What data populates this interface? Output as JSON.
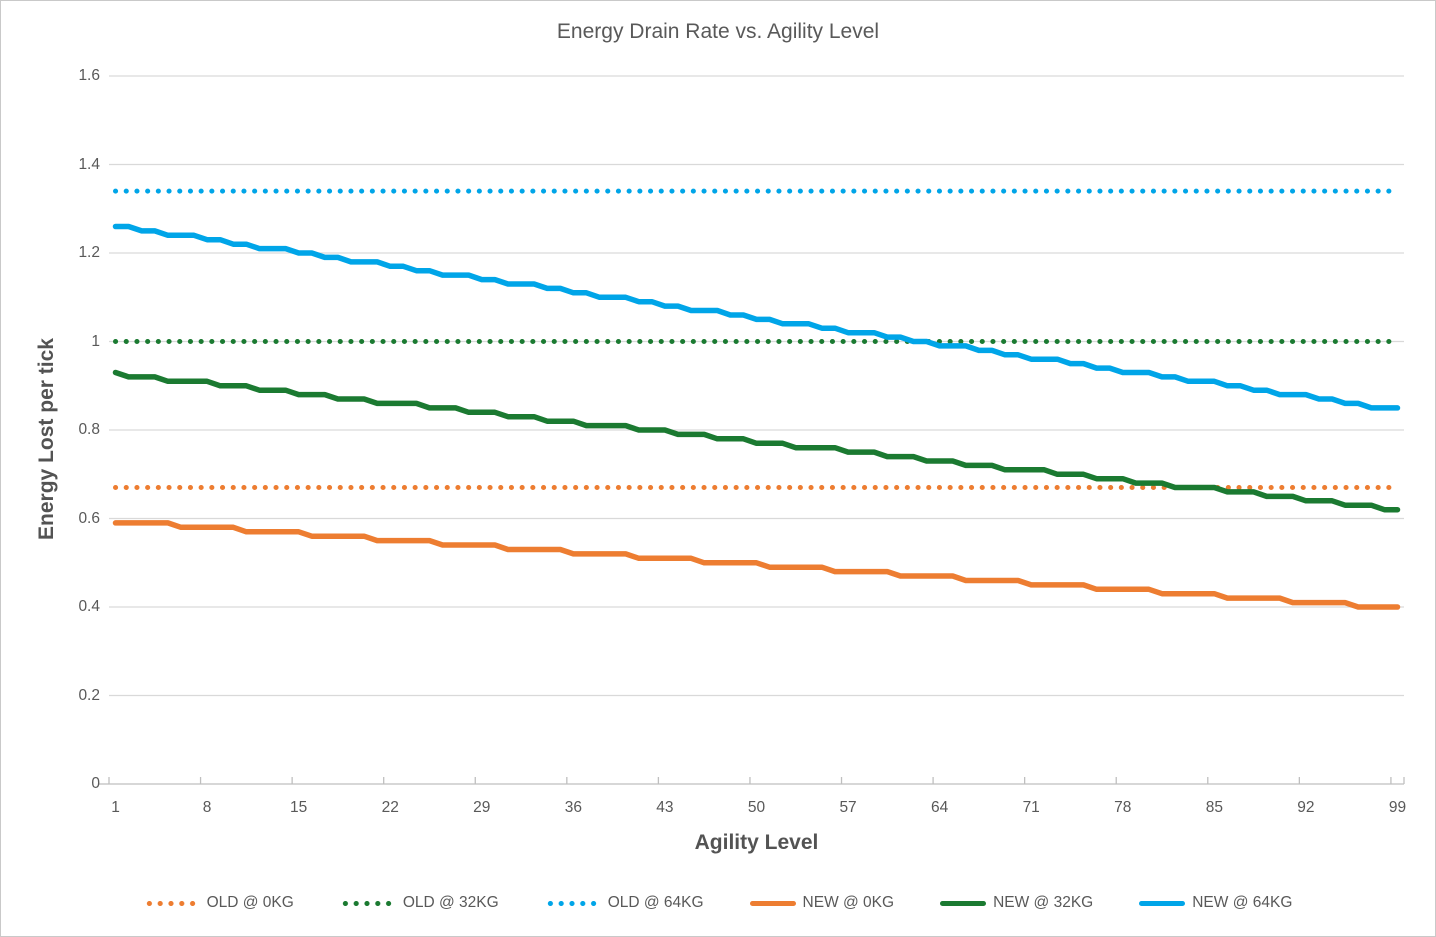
{
  "chart_data": {
    "type": "line",
    "title": "Energy Drain Rate vs. Agility Level",
    "xlabel": "Agility Level",
    "ylabel": "Energy Lost per tick",
    "x_min": 1,
    "x_max": 99,
    "x_count": 99,
    "ylim": [
      0,
      1.6
    ],
    "grid": true,
    "legend_position": "bottom",
    "x_ticks": [
      "1",
      "8",
      "15",
      "22",
      "29",
      "36",
      "43",
      "50",
      "57",
      "64",
      "71",
      "78",
      "85",
      "92",
      "99"
    ],
    "x_tick_levels": [
      1,
      8,
      15,
      22,
      29,
      36,
      43,
      50,
      57,
      64,
      71,
      78,
      85,
      92,
      99
    ],
    "y_ticks": [
      {
        "v": 0,
        "label": "0"
      },
      {
        "v": 0.2,
        "label": "0.2"
      },
      {
        "v": 0.4,
        "label": "0.4"
      },
      {
        "v": 0.6,
        "label": "0.6"
      },
      {
        "v": 0.8,
        "label": "0.8"
      },
      {
        "v": 1,
        "label": "1"
      },
      {
        "v": 1.2,
        "label": "1.2"
      },
      {
        "v": 1.4,
        "label": "1.4"
      },
      {
        "v": 1.6,
        "label": "1.6"
      }
    ],
    "values_unit": "hundredths of energy lost per tick (divide by 100)",
    "series": [
      {
        "name": "OLD @ 0KG",
        "color": "#ED7D31",
        "style": "dotted",
        "constant": 0.67
      },
      {
        "name": "OLD @ 32KG",
        "color": "#1B7A31",
        "style": "dotted",
        "constant": 1.0
      },
      {
        "name": "OLD @ 64KG",
        "color": "#00A5E8",
        "style": "dotted",
        "constant": 1.34
      },
      {
        "name": "NEW @ 0KG",
        "color": "#ED7D31",
        "style": "solid",
        "values_x100": [
          59,
          59,
          59,
          59,
          59,
          58,
          58,
          58,
          58,
          58,
          57,
          57,
          57,
          57,
          57,
          56,
          56,
          56,
          56,
          56,
          55,
          55,
          55,
          55,
          55,
          54,
          54,
          54,
          54,
          54,
          53,
          53,
          53,
          53,
          53,
          52,
          52,
          52,
          52,
          52,
          51,
          51,
          51,
          51,
          51,
          50,
          50,
          50,
          50,
          50,
          49,
          49,
          49,
          49,
          49,
          48,
          48,
          48,
          48,
          48,
          47,
          47,
          47,
          47,
          47,
          46,
          46,
          46,
          46,
          46,
          45,
          45,
          45,
          45,
          45,
          44,
          44,
          44,
          44,
          44,
          43,
          43,
          43,
          43,
          43,
          42,
          42,
          42,
          42,
          42,
          41,
          41,
          41,
          41,
          41,
          40,
          40,
          40,
          40
        ]
      },
      {
        "name": "NEW @ 32KG",
        "color": "#1B7A31",
        "style": "solid",
        "values_x100": [
          93,
          92,
          92,
          92,
          91,
          91,
          91,
          91,
          90,
          90,
          90,
          89,
          89,
          89,
          88,
          88,
          88,
          87,
          87,
          87,
          86,
          86,
          86,
          86,
          85,
          85,
          85,
          84,
          84,
          84,
          83,
          83,
          83,
          82,
          82,
          82,
          81,
          81,
          81,
          81,
          80,
          80,
          80,
          79,
          79,
          79,
          78,
          78,
          78,
          77,
          77,
          77,
          76,
          76,
          76,
          76,
          75,
          75,
          75,
          74,
          74,
          74,
          73,
          73,
          73,
          72,
          72,
          72,
          71,
          71,
          71,
          71,
          70,
          70,
          70,
          69,
          69,
          69,
          68,
          68,
          68,
          67,
          67,
          67,
          67,
          66,
          66,
          66,
          65,
          65,
          65,
          64,
          64,
          64,
          63,
          63,
          63,
          62,
          62
        ]
      },
      {
        "name": "NEW @ 64KG",
        "color": "#00A5E8",
        "style": "solid",
        "values_x100": [
          126,
          126,
          125,
          125,
          124,
          124,
          124,
          123,
          123,
          122,
          122,
          121,
          121,
          121,
          120,
          120,
          119,
          119,
          118,
          118,
          118,
          117,
          117,
          116,
          116,
          115,
          115,
          115,
          114,
          114,
          113,
          113,
          113,
          112,
          112,
          111,
          111,
          110,
          110,
          110,
          109,
          109,
          108,
          108,
          107,
          107,
          107,
          106,
          106,
          105,
          105,
          104,
          104,
          104,
          103,
          103,
          102,
          102,
          102,
          101,
          101,
          100,
          100,
          99,
          99,
          99,
          98,
          98,
          97,
          97,
          96,
          96,
          96,
          95,
          95,
          94,
          94,
          93,
          93,
          93,
          92,
          92,
          91,
          91,
          91,
          90,
          90,
          89,
          89,
          88,
          88,
          88,
          87,
          87,
          86,
          86,
          85,
          85,
          85
        ]
      }
    ],
    "colors": {
      "gridline": "#D9D9D9",
      "axis_line": "#BFBFBF",
      "tick_text": "#595959",
      "title_text": "#595959",
      "axis_title_text": "#535353"
    }
  }
}
